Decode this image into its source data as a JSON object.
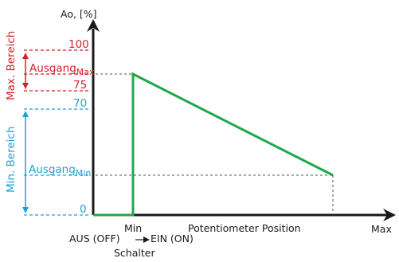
{
  "diagram": {
    "y_axis_label": "Ao, [%]",
    "ticks": {
      "t100": "100",
      "t75": "75",
      "t70": "70",
      "t0": "0"
    },
    "max_range_label": "Max. Bereich",
    "min_range_label": "Min. Bereich",
    "output_max_label": "Ausgang",
    "output_max_sub": "Max",
    "output_min_label": "Ausgang",
    "output_min_sub": "Min",
    "x_min_label": "Min",
    "x_max_label": "Max",
    "x_axis_label": "Potentiometer Position",
    "switch_off_label": "AUS (OFF)",
    "switch_on_label": "EIN (ON)",
    "switch_label": "Schalter"
  },
  "colors": {
    "axis": "#1a1a1a",
    "curve": "#1fa84a",
    "max_range": "#d2232a",
    "min_range": "#1ba1d7",
    "guide": "#555555"
  }
}
